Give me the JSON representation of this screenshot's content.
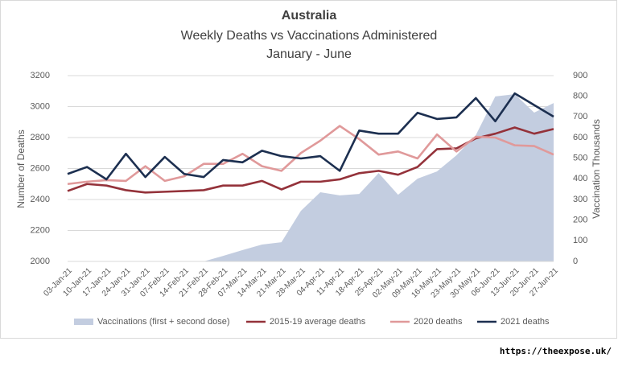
{
  "chart_data": {
    "type": "line",
    "title": "Australia",
    "subtitle": [
      "Weekly Deaths vs Vaccinations Administered",
      "January - June"
    ],
    "ylabel": "Number of Deaths",
    "y2label": "Vaccination Thousands",
    "categories": [
      "03-Jan-21",
      "10-Jan-21",
      "17-Jan-21",
      "24-Jan-21",
      "31-Jan-21",
      "07-Feb-21",
      "14-Feb-21",
      "21-Feb-21",
      "28-Feb-21",
      "07-Mar-21",
      "14-Mar-21",
      "21-Mar-21",
      "28-Mar-21",
      "04-Apr-21",
      "11-Apr-21",
      "18-Apr-21",
      "25-Apr-21",
      "02-May-21",
      "09-May-21",
      "16-May-21",
      "23-May-21",
      "30-May-21",
      "06-Jun-21",
      "13-Jun-21",
      "20-Jun-21",
      "27-Jun-21"
    ],
    "series": [
      {
        "name": "Vaccinations (first + second dose)",
        "color": "#c3cde0",
        "kind": "area",
        "axis": "y2",
        "values": [
          0,
          0,
          0,
          0,
          0,
          0,
          0,
          0,
          27,
          55,
          82,
          93,
          245,
          335,
          320,
          327,
          428,
          323,
          401,
          436,
          514,
          612,
          799,
          810,
          721,
          767
        ]
      },
      {
        "name": "2015-19 average deaths",
        "color": "#94323a",
        "kind": "line",
        "values": [
          2455,
          2500,
          2490,
          2460,
          2445,
          2450,
          2455,
          2460,
          2490,
          2490,
          2520,
          2465,
          2515,
          2515,
          2530,
          2570,
          2585,
          2560,
          2610,
          2725,
          2730,
          2795,
          2825,
          2865,
          2825,
          2855
        ]
      },
      {
        "name": "2020 deaths",
        "color": "#e0999a",
        "kind": "line",
        "values": [
          2500,
          2515,
          2525,
          2520,
          2615,
          2520,
          2550,
          2630,
          2630,
          2695,
          2615,
          2585,
          2700,
          2780,
          2875,
          2790,
          2690,
          2710,
          2665,
          2820,
          2710,
          2805,
          2800,
          2750,
          2745,
          2690
        ]
      },
      {
        "name": "2021 deaths",
        "color": "#1c2f50",
        "kind": "line",
        "values": [
          2565,
          2610,
          2530,
          2695,
          2545,
          2675,
          2565,
          2545,
          2655,
          2640,
          2715,
          2680,
          2665,
          2680,
          2585,
          2845,
          2825,
          2825,
          2960,
          2920,
          2930,
          3055,
          2905,
          3085,
          3010,
          2935
        ]
      }
    ],
    "ylim": [
      2000,
      3200
    ],
    "yticks": [
      2000,
      2200,
      2400,
      2600,
      2800,
      3000,
      3200
    ],
    "y2lim": [
      0,
      900
    ],
    "y2ticks": [
      0,
      100,
      200,
      300,
      400,
      500,
      600,
      700,
      800,
      900
    ],
    "grid": true,
    "legend": "bottom",
    "source": "https://theexpose.uk/"
  }
}
